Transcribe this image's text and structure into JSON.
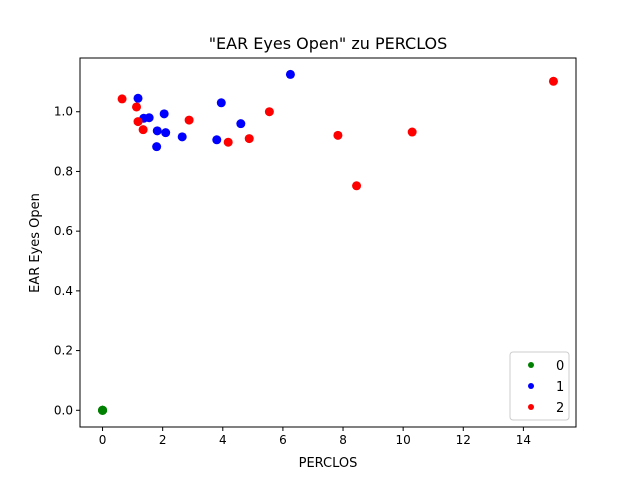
{
  "chart_data": {
    "type": "scatter",
    "title": "\"EAR Eyes Open\" zu PERCLOS",
    "xlabel": "PERCLOS",
    "ylabel": "EAR Eyes Open",
    "xlim": [
      -0.75,
      15.75
    ],
    "ylim": [
      -0.056,
      1.18
    ],
    "xticks": [
      0,
      2,
      4,
      6,
      8,
      10,
      12,
      14
    ],
    "yticks": [
      0.0,
      0.2,
      0.4,
      0.6,
      0.8,
      1.0
    ],
    "ytick_labels": [
      "0.0",
      "0.2",
      "0.4",
      "0.6",
      "0.8",
      "1.0"
    ],
    "grid": false,
    "legend": {
      "placement": "lower-right"
    },
    "series": [
      {
        "name": "0",
        "color": "#008000",
        "points": [
          [
            0,
            0
          ],
          [
            0,
            0
          ],
          [
            0,
            0
          ],
          [
            0,
            0
          ]
        ]
      },
      {
        "name": "1",
        "color": "#0000ff",
        "points": [
          [
            1.18,
            1.045
          ],
          [
            1.37,
            0.978
          ],
          [
            1.55,
            0.98
          ],
          [
            2.05,
            0.993
          ],
          [
            1.8,
            0.883
          ],
          [
            1.82,
            0.936
          ],
          [
            2.1,
            0.93
          ],
          [
            2.65,
            0.916
          ],
          [
            3.8,
            0.906
          ],
          [
            3.95,
            1.03
          ],
          [
            4.6,
            0.96
          ],
          [
            6.25,
            1.125
          ]
        ]
      },
      {
        "name": "2",
        "color": "#ff0000",
        "points": [
          [
            0.65,
            1.043
          ],
          [
            1.13,
            1.016
          ],
          [
            1.18,
            0.967
          ],
          [
            1.35,
            0.94
          ],
          [
            2.88,
            0.972
          ],
          [
            4.18,
            0.898
          ],
          [
            4.88,
            0.91
          ],
          [
            5.55,
            1.0
          ],
          [
            7.83,
            0.921
          ],
          [
            8.45,
            0.752
          ],
          [
            10.3,
            0.932
          ],
          [
            15.0,
            1.102
          ]
        ]
      }
    ]
  }
}
